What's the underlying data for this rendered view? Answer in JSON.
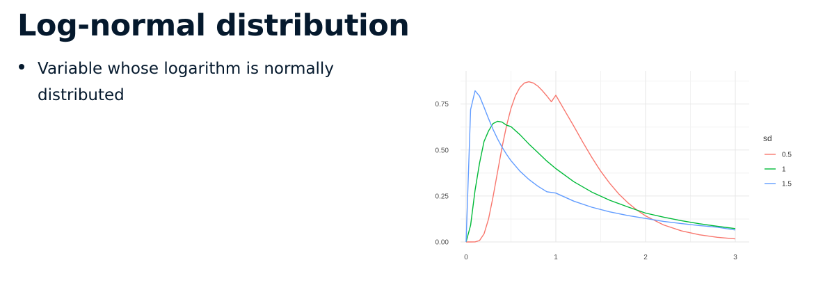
{
  "slide": {
    "title": "Log-normal distribution",
    "bullets": [
      "Variable whose logarithm is normally distributed"
    ]
  },
  "chart_data": {
    "type": "line",
    "title": "",
    "xlabel": "",
    "ylabel": "",
    "xlim": [
      0,
      3
    ],
    "ylim": [
      0,
      0.9
    ],
    "x_ticks": [
      0,
      1,
      2,
      3
    ],
    "x_tick_labels": [
      "0",
      "1",
      "2",
      "3"
    ],
    "y_ticks": [
      0,
      0.25,
      0.5,
      0.75
    ],
    "y_tick_labels": [
      "0.00",
      "0.25",
      "0.50",
      "0.75"
    ],
    "grid": true,
    "legend": {
      "title": "sd",
      "position": "right"
    },
    "series": [
      {
        "name": "0.5",
        "color": "#F8766D",
        "x": [
          0,
          0.05,
          0.1,
          0.15,
          0.2,
          0.25,
          0.3,
          0.35,
          0.4,
          0.45,
          0.5,
          0.55,
          0.6,
          0.65,
          0.7,
          0.75,
          0.8,
          0.85,
          0.9,
          0.95,
          1,
          1.1,
          1.2,
          1.3,
          1.4,
          1.5,
          1.6,
          1.7,
          1.8,
          1.9,
          2,
          2.2,
          2.4,
          2.6,
          2.8,
          3
        ],
        "y": [
          0,
          0,
          0.0003,
          0.0075,
          0.0439,
          0.1252,
          0.2443,
          0.38,
          0.5135,
          0.6311,
          0.7259,
          0.7954,
          0.8408,
          0.8648,
          0.8714,
          0.8644,
          0.8473,
          0.823,
          0.7943,
          0.7628,
          0.7979,
          0.7135,
          0.6301,
          0.5433,
          0.4608,
          0.3849,
          0.319,
          0.2622,
          0.2143,
          0.1746,
          0.1418,
          0.0926,
          0.0602,
          0.0391,
          0.0255,
          0.0166
        ]
      },
      {
        "name": "1",
        "color": "#00BA38",
        "x": [
          0,
          0.05,
          0.1,
          0.15,
          0.2,
          0.25,
          0.3,
          0.35,
          0.4,
          0.45,
          0.5,
          0.6,
          0.7,
          0.8,
          0.9,
          1,
          1.2,
          1.4,
          1.6,
          1.8,
          2,
          2.2,
          2.4,
          2.6,
          2.8,
          3
        ],
        "y": [
          0,
          0.0909,
          0.2811,
          0.4276,
          0.5463,
          0.6039,
          0.644,
          0.656,
          0.652,
          0.635,
          0.6275,
          0.5836,
          0.5325,
          0.4864,
          0.4398,
          0.3989,
          0.3279,
          0.2714,
          0.2269,
          0.191,
          0.1568,
          0.135,
          0.1156,
          0.0992,
          0.0851,
          0.0727
        ]
      },
      {
        "name": "1.5",
        "color": "#619CFF",
        "x": [
          0,
          0.05,
          0.1,
          0.15,
          0.2,
          0.25,
          0.3,
          0.35,
          0.4,
          0.45,
          0.5,
          0.6,
          0.7,
          0.8,
          0.9,
          1,
          1.2,
          1.4,
          1.6,
          1.8,
          2,
          2.2,
          2.4,
          2.6,
          2.8,
          3
        ],
        "y": [
          0,
          0.72,
          0.8222,
          0.7934,
          0.7331,
          0.6704,
          0.6126,
          0.5608,
          0.516,
          0.477,
          0.4422,
          0.3848,
          0.3401,
          0.3032,
          0.2729,
          0.266,
          0.2219,
          0.189,
          0.1638,
          0.1441,
          0.128,
          0.112,
          0.0998,
          0.0893,
          0.0803,
          0.065
        ]
      }
    ]
  }
}
